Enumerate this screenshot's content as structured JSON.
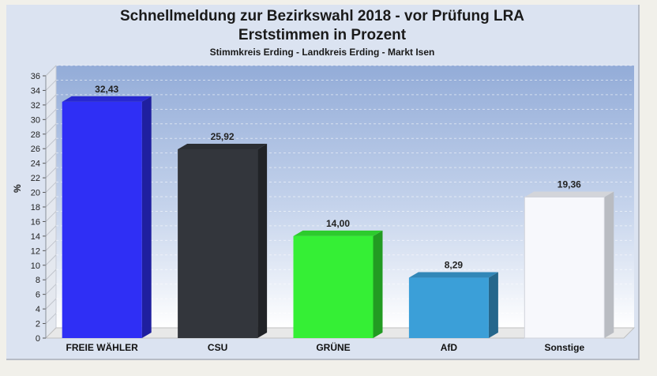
{
  "chart_data": {
    "type": "bar",
    "title": "Schnellmeldung zur Bezirkswahl 2018 - vor Prüfung LRA",
    "subtitle": "Erststimmen in Prozent",
    "caption": "Stimmkreis Erding - Landkreis Erding - Markt Isen",
    "ylabel": "%",
    "xlabel": "",
    "ylim": [
      0,
      36
    ],
    "yticks": [
      "0",
      "2",
      "4",
      "6",
      "8",
      "10",
      "12",
      "14",
      "16",
      "18",
      "20",
      "22",
      "24",
      "26",
      "28",
      "30",
      "32",
      "34",
      "36"
    ],
    "grid": true,
    "categories": [
      "FREIE WÄHLER",
      "CSU",
      "GRÜNE",
      "AfD",
      "Sonstige"
    ],
    "values": [
      32.43,
      25.92,
      14.0,
      8.29,
      19.36
    ],
    "value_labels": [
      "32,43",
      "25,92",
      "14,00",
      "8,29",
      "19,36"
    ],
    "colors": [
      "#2f2ff5",
      "#33363c",
      "#35ef35",
      "#3b9fd8",
      "#f7f8fc"
    ]
  }
}
